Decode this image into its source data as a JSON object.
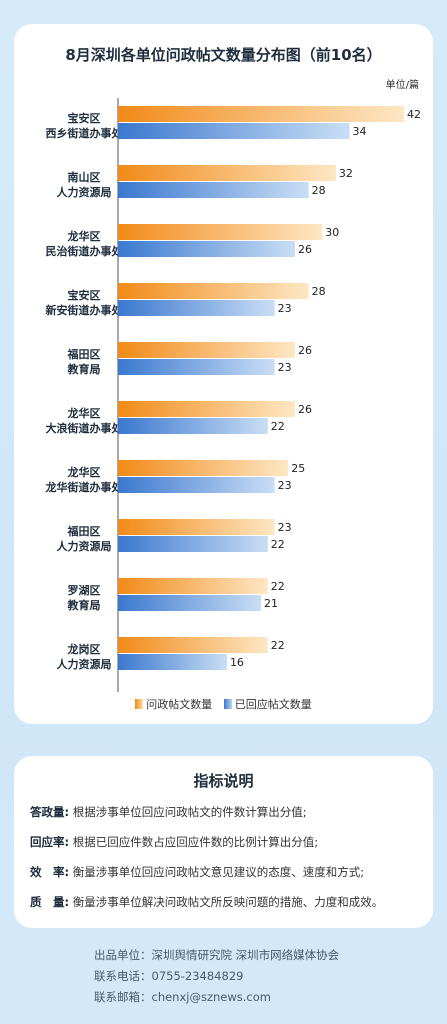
{
  "chart_data": {
    "type": "bar",
    "orientation": "horizontal",
    "title": "8月深圳各单位问政帖文数量分布图（前10名）",
    "unit": "单位/篇",
    "categories": [
      [
        "宝安区",
        "西乡街道办事处"
      ],
      [
        "南山区",
        "人力资源局"
      ],
      [
        "龙华区",
        "民治街道办事处"
      ],
      [
        "宝安区",
        "新安街道办事处"
      ],
      [
        "福田区",
        "教育局"
      ],
      [
        "龙华区",
        "大浪街道办事处"
      ],
      [
        "龙华区",
        "龙华街道办事处"
      ],
      [
        "福田区",
        "人力资源局"
      ],
      [
        "罗湖区",
        "教育局"
      ],
      [
        "龙岗区",
        "人力资源局"
      ]
    ],
    "series": [
      {
        "name": "问政帖文数量",
        "values": [
          42,
          32,
          30,
          28,
          26,
          26,
          25,
          23,
          22,
          22
        ]
      },
      {
        "name": "已回应帖文数量",
        "values": [
          34,
          28,
          26,
          23,
          23,
          22,
          23,
          22,
          21,
          16
        ]
      }
    ],
    "xlim": [
      0,
      42
    ],
    "grid": false,
    "legend_position": "bottom"
  },
  "colors": {
    "series_a_start": "#f28a18",
    "series_a_end": "#fde7c4",
    "series_b_start": "#3b78cf",
    "series_b_end": "#c9def5"
  },
  "info": {
    "title": "指标说明",
    "rows": [
      {
        "term": "答政量:",
        "desc": "根据涉事单位回应问政帖文的件数计算出分值;"
      },
      {
        "term": "回应率:",
        "desc": "根据已回应件数占应回应件数的比例计算出分值;"
      },
      {
        "term": "效　率:",
        "desc": "衡量涉事单位回应问政帖文意见建议的态度、速度和方式;"
      },
      {
        "term": "质　量:",
        "desc": "衡量涉事单位解决问政帖文所反映问题的措施、力度和成效。"
      }
    ]
  },
  "footer": {
    "publisher": "出品单位：深圳舆情研究院 深圳市网络媒体协会",
    "phone": "联系电话：0755-23484829",
    "email": "联系邮箱：chenxj@sznews.com"
  }
}
